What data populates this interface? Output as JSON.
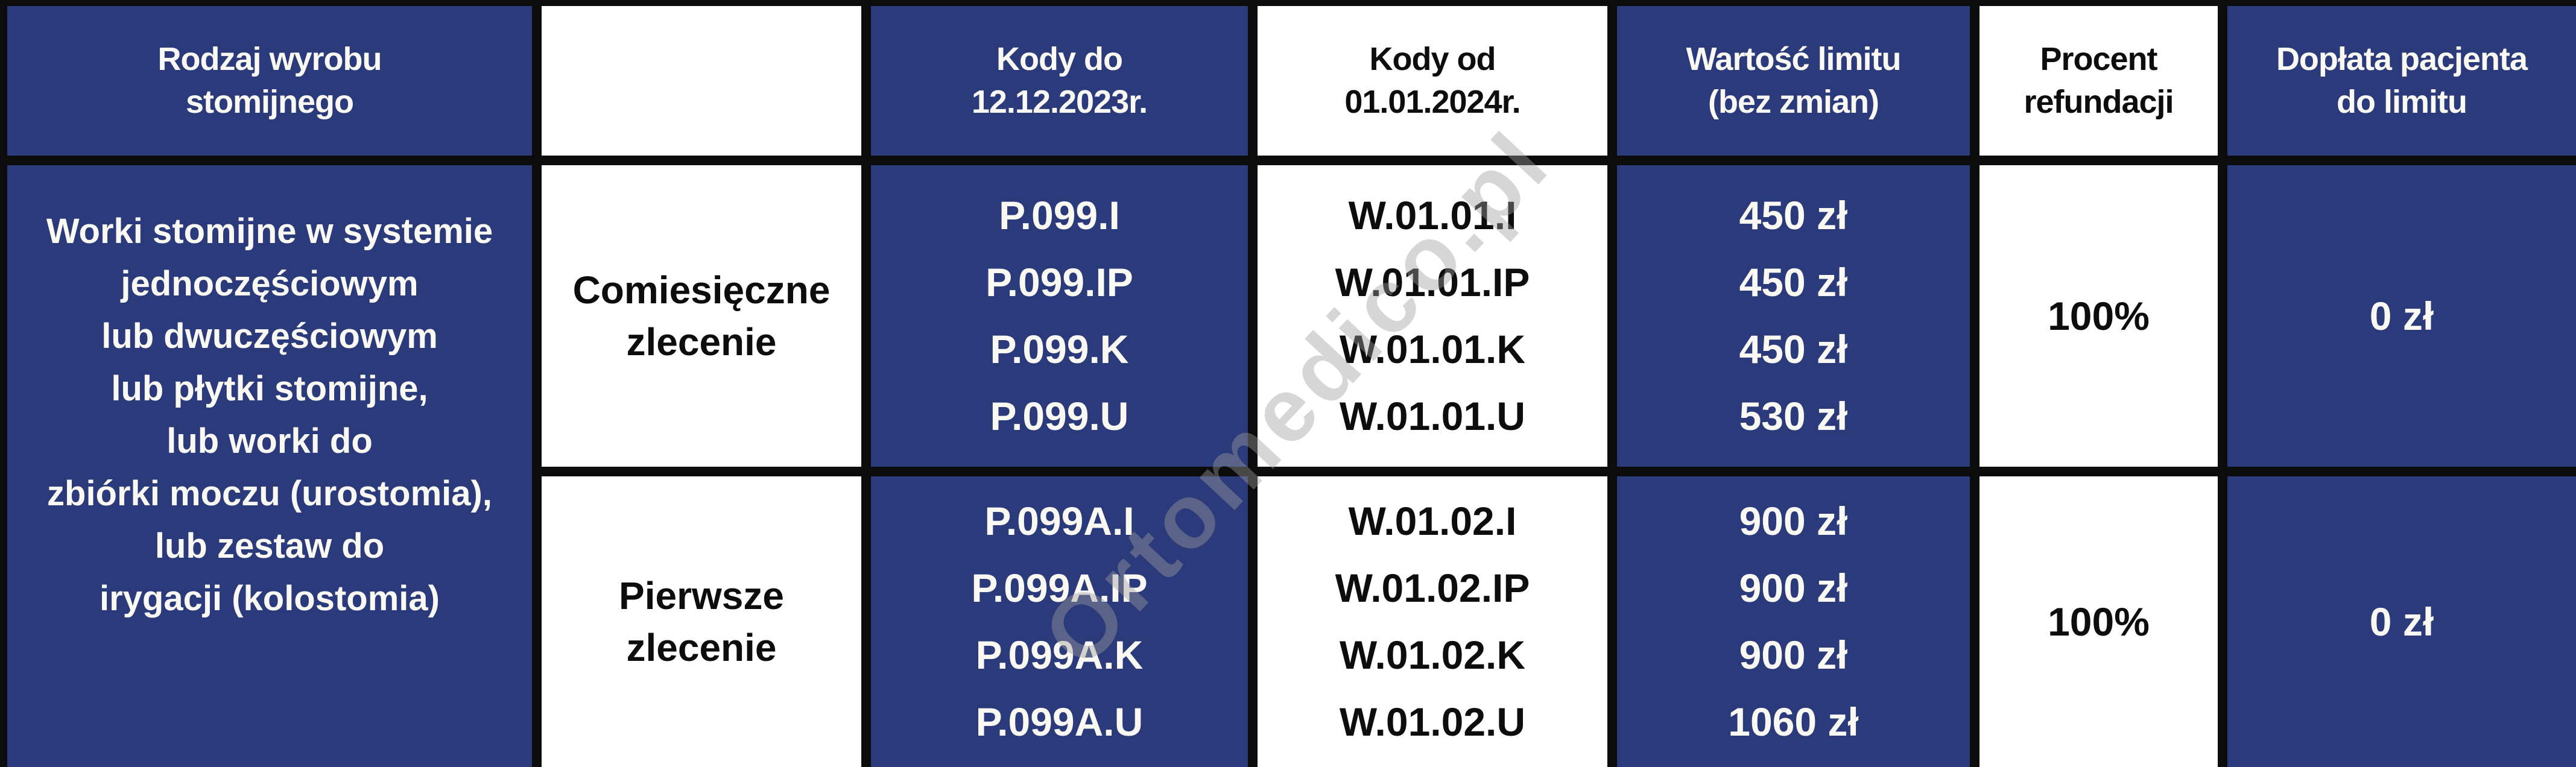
{
  "table": {
    "headers": [
      {
        "label": "Rodzaj wyrobu\nstomijnego",
        "theme": "navy"
      },
      {
        "label": "",
        "theme": "white"
      },
      {
        "label": "Kody do\n12.12.2023r.",
        "theme": "navy"
      },
      {
        "label": "Kody od\n01.01.2024r.",
        "theme": "white"
      },
      {
        "label": "Wartość limitu\n(bez zmian)",
        "theme": "navy"
      },
      {
        "label": "Procent\nrefundacji",
        "theme": "white"
      },
      {
        "label": "Dopłata pacjenta\ndo limitu",
        "theme": "navy"
      }
    ],
    "product_lines": [
      "Worki stomijne w systemie",
      "jednoczęściowym",
      "lub dwuczęściowym",
      "lub płytki stomijne,",
      "lub worki do",
      "zbiórki moczu (urostomia),",
      "lub zestaw do",
      "irygacji (kolostomia)"
    ],
    "rows": [
      {
        "order_type": "Comiesięczne\nzlecenie",
        "codes_old": [
          "P.099.I",
          "P.099.IP",
          "P.099.K",
          "P.099.U"
        ],
        "codes_new": [
          "W.01.01.I",
          "W.01.01.IP",
          "W.01.01.K",
          "W.01.01.U"
        ],
        "limit_values": [
          "450 zł",
          "450 zł",
          "450 zł",
          "530 zł"
        ],
        "refund_percent": "100%",
        "patient_payment": "0 zł"
      },
      {
        "order_type": "Pierwsze\nzlecenie",
        "codes_old": [
          "P.099A.I",
          "P.099A.IP",
          "P.099A.K",
          "P.099A.U"
        ],
        "codes_new": [
          "W.01.02.I",
          "W.01.02.IP",
          "W.01.02.K",
          "W.01.02.U"
        ],
        "limit_values": [
          "900 zł",
          "900 zł",
          "900 zł",
          "1060 zł"
        ],
        "refund_percent": "100%",
        "patient_payment": "0 zł"
      }
    ]
  },
  "watermark": {
    "text": "Ortomedico.pl"
  },
  "colors": {
    "navy": "#2b3a7a",
    "border": "#0c0c0c",
    "white": "#ffffff",
    "text_light": "#faf8f2",
    "text_dark": "#0d0d0d"
  }
}
